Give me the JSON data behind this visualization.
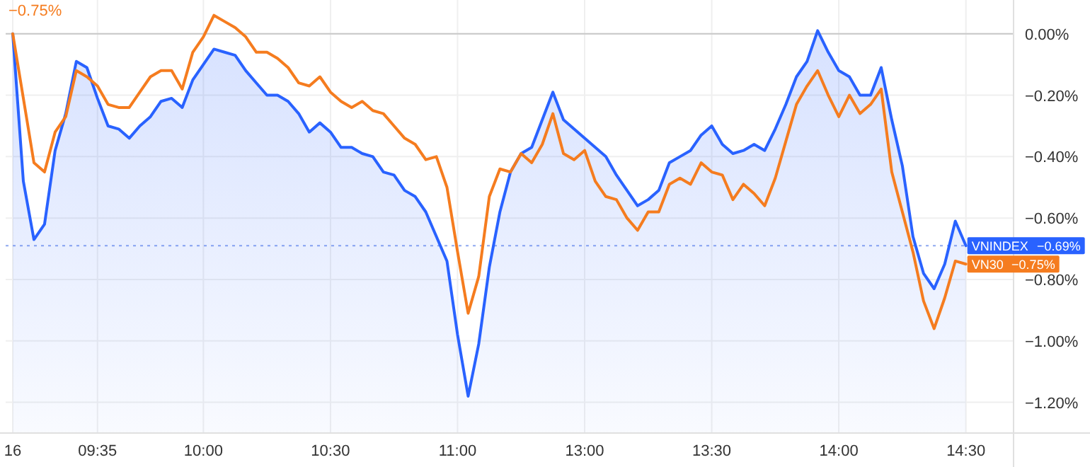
{
  "chart_data": {
    "type": "line",
    "categories": [
      "16",
      null,
      null,
      null,
      null,
      null,
      null,
      null,
      "09:35",
      null,
      null,
      null,
      null,
      null,
      null,
      null,
      null,
      null,
      "10:00",
      null,
      null,
      null,
      null,
      null,
      null,
      null,
      null,
      null,
      null,
      null,
      "10:30",
      null,
      null,
      null,
      null,
      null,
      null,
      null,
      null,
      null,
      null,
      null,
      "11:00",
      null,
      null,
      null,
      null,
      null,
      null,
      null,
      null,
      null,
      null,
      null,
      "13:00",
      null,
      null,
      null,
      null,
      null,
      null,
      null,
      null,
      null,
      null,
      null,
      "13:30",
      null,
      null,
      null,
      null,
      null,
      null,
      null,
      null,
      null,
      null,
      null,
      "14:00",
      null,
      null,
      null,
      null,
      null,
      null,
      null,
      null,
      null,
      null,
      null,
      "14:30"
    ],
    "ylim": [
      -1.3,
      0.11
    ],
    "yticks": [
      {
        "value": 0,
        "label": "0.00%"
      },
      {
        "value": -0.2,
        "label": "−0.20%"
      },
      {
        "value": -0.4,
        "label": "−0.40%"
      },
      {
        "value": -0.6,
        "label": "−0.60%"
      },
      {
        "value": -0.8,
        "label": "−0.80%"
      },
      {
        "value": -1,
        "label": "−1.00%"
      },
      {
        "value": -1.2,
        "label": "−1.20%"
      }
    ],
    "grid": true,
    "ref_lines": [
      {
        "axis": "y",
        "value": 0,
        "color": "#c8c8c8"
      },
      {
        "axis": "y",
        "value": -0.69,
        "color": "#8fa8f0",
        "line_style": "dotted"
      }
    ],
    "annotations": [
      "−0.75%",
      "−0.69%",
      "−0.75%"
    ],
    "series": [
      {
        "name": "VNINDEX",
        "color": "#2962ff",
        "values": [
          0,
          -0.48,
          -0.67,
          -0.62,
          -0.38,
          -0.26,
          -0.09,
          -0.11,
          -0.21,
          -0.3,
          -0.31,
          -0.34,
          -0.3,
          -0.27,
          -0.22,
          -0.21,
          -0.24,
          -0.15,
          -0.1,
          -0.05,
          -0.06,
          -0.07,
          -0.12,
          -0.16,
          -0.2,
          -0.2,
          -0.22,
          -0.26,
          -0.32,
          -0.29,
          -0.32,
          -0.37,
          -0.37,
          -0.39,
          -0.4,
          -0.45,
          -0.46,
          -0.51,
          -0.53,
          -0.58,
          -0.66,
          -0.74,
          -0.98,
          -1.18,
          -1.01,
          -0.76,
          -0.58,
          -0.45,
          -0.39,
          -0.37,
          -0.28,
          -0.19,
          -0.28,
          -0.31,
          -0.34,
          -0.37,
          -0.4,
          -0.46,
          -0.51,
          -0.56,
          -0.54,
          -0.51,
          -0.42,
          -0.4,
          -0.38,
          -0.33,
          -0.3,
          -0.36,
          -0.39,
          -0.38,
          -0.36,
          -0.38,
          -0.31,
          -0.23,
          -0.14,
          -0.09,
          0.01,
          -0.06,
          -0.12,
          -0.14,
          -0.2,
          -0.2,
          -0.11,
          -0.28,
          -0.43,
          -0.66,
          -0.78,
          -0.83,
          -0.75,
          -0.61,
          -0.69
        ]
      },
      {
        "name": "VN30",
        "color": "#f57c1f",
        "values": [
          0,
          -0.21,
          -0.42,
          -0.45,
          -0.32,
          -0.27,
          -0.12,
          -0.14,
          -0.17,
          -0.23,
          -0.24,
          -0.24,
          -0.19,
          -0.14,
          -0.12,
          -0.12,
          -0.18,
          -0.06,
          -0.01,
          0.06,
          0.04,
          0.02,
          -0.01,
          -0.06,
          -0.06,
          -0.08,
          -0.11,
          -0.16,
          -0.17,
          -0.14,
          -0.19,
          -0.22,
          -0.24,
          -0.22,
          -0.25,
          -0.26,
          -0.3,
          -0.34,
          -0.36,
          -0.41,
          -0.4,
          -0.5,
          -0.71,
          -0.91,
          -0.79,
          -0.53,
          -0.44,
          -0.45,
          -0.39,
          -0.42,
          -0.36,
          -0.26,
          -0.39,
          -0.41,
          -0.38,
          -0.48,
          -0.53,
          -0.54,
          -0.6,
          -0.64,
          -0.58,
          -0.58,
          -0.49,
          -0.47,
          -0.49,
          -0.42,
          -0.45,
          -0.46,
          -0.54,
          -0.49,
          -0.52,
          -0.56,
          -0.47,
          -0.35,
          -0.23,
          -0.17,
          -0.12,
          -0.2,
          -0.27,
          -0.2,
          -0.26,
          -0.23,
          -0.18,
          -0.45,
          -0.58,
          -0.71,
          -0.87,
          -0.96,
          -0.86,
          -0.74,
          -0.75
        ]
      }
    ]
  }
}
